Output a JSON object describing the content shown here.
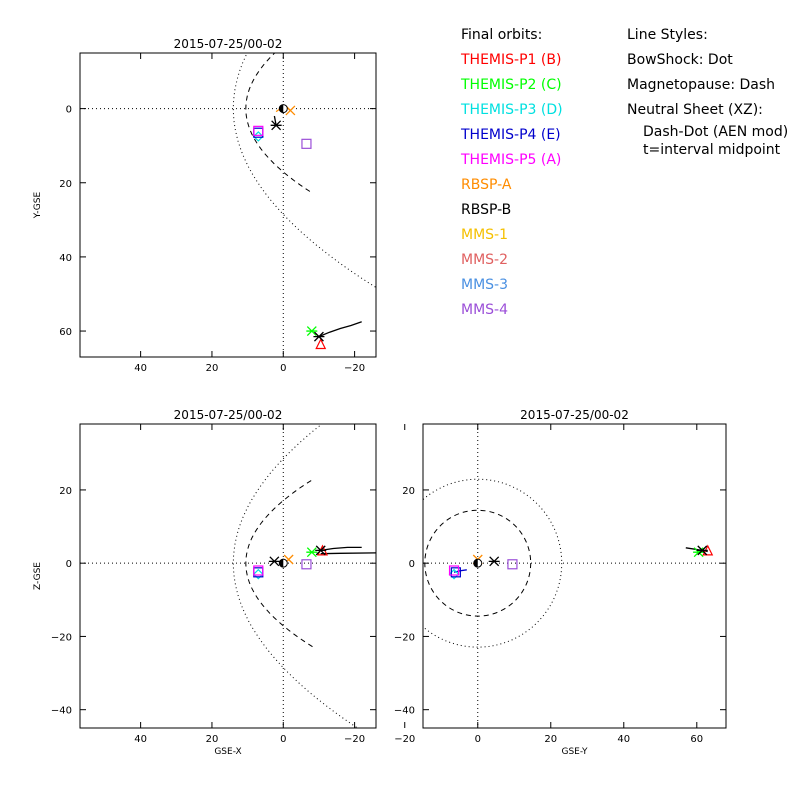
{
  "legend": {
    "orbits_header": "Final orbits:",
    "orbits": [
      {
        "label": "THEMIS-P1 (B)",
        "color": "#ff0000"
      },
      {
        "label": "THEMIS-P2 (C)",
        "color": "#00ff00"
      },
      {
        "label": "THEMIS-P3 (D)",
        "color": "#00e0e0"
      },
      {
        "label": "THEMIS-P4 (E)",
        "color": "#0000cc"
      },
      {
        "label": "THEMIS-P5 (A)",
        "color": "#ff00ff"
      },
      {
        "label": "RBSP-A",
        "color": "#ff8c00"
      },
      {
        "label": "RBSP-B",
        "color": "#000000"
      },
      {
        "label": "MMS-1",
        "color": "#f5c000"
      },
      {
        "label": "MMS-2",
        "color": "#e06060"
      },
      {
        "label": "MMS-3",
        "color": "#4a90e2"
      },
      {
        "label": "MMS-4",
        "color": "#9b4fd8"
      }
    ],
    "styles_header": "Line Styles:",
    "styles": [
      "BowShock: Dot",
      "Magnetopause: Dash",
      "Neutral Sheet (XZ):"
    ],
    "style_notes": [
      "Dash-Dot (AEN mod)",
      "t=interval midpoint"
    ]
  },
  "chart_data": [
    {
      "type": "scatter",
      "title": "2015-07-25/00-02",
      "xlabel": "",
      "ylabel": "Y-GSE",
      "xlim": [
        57,
        -26
      ],
      "ylim": [
        -15,
        67
      ],
      "x_reversed": true,
      "y_reversed": true,
      "xticks": [
        40,
        20,
        0,
        -20
      ],
      "xtick_labels": [
        "40",
        "20",
        "0",
        "−20"
      ],
      "yticks": [
        0,
        20,
        40,
        60
      ],
      "ytick_labels": [
        "0",
        "20",
        "40",
        "60"
      ],
      "zero_lines": true,
      "points": [
        {
          "x": -10.5,
          "y": 63.5,
          "marker": "triangle",
          "color": "#ff0000"
        },
        {
          "x": -8,
          "y": 60,
          "marker": "asterisk",
          "color": "#00ff00"
        },
        {
          "x": 7,
          "y": 7.5,
          "marker": "diamond",
          "color": "#00e0e0"
        },
        {
          "x": 7,
          "y": 6.5,
          "marker": "square",
          "color": "#0000cc"
        },
        {
          "x": 7,
          "y": 6,
          "marker": "square",
          "color": "#ff00ff"
        },
        {
          "x": -2,
          "y": 0.5,
          "marker": "x",
          "color": "#ff8c00"
        },
        {
          "x": 2,
          "y": 4.5,
          "marker": "asterisk",
          "color": "#000000"
        },
        {
          "x": -10,
          "y": 61.5,
          "marker": "asterisk",
          "color": "#000000"
        },
        {
          "x": -6.5,
          "y": 9.5,
          "marker": "square",
          "color": "#9b4fd8"
        },
        {
          "x": 0,
          "y": 0,
          "marker": "earth",
          "color": "#000000"
        }
      ],
      "tracks": [
        {
          "color": "#000000",
          "x": [
            -10,
            -13,
            -16,
            -19,
            -22
          ],
          "y": [
            61.5,
            60.3,
            59.3,
            58.5,
            57.5
          ]
        },
        {
          "color": "#ff8c00",
          "x": [
            -2,
            -1,
            0.5,
            2
          ],
          "y": [
            0.5,
            -0.3,
            -0.2,
            0.8
          ]
        },
        {
          "color": "#000000",
          "x": [
            2,
            2.5
          ],
          "y": [
            4.5,
            2
          ]
        }
      ],
      "boundaries": [
        {
          "kind": "bowshock",
          "style": "dotted",
          "x0": 14,
          "p": 29.1,
          "tmax": 70
        },
        {
          "kind": "magnetopause",
          "style": "dashed",
          "x0": 10.5,
          "p": 13.9,
          "tmax": 22.8
        }
      ]
    },
    {
      "type": "scatter",
      "title": "2015-07-25/00-02",
      "xlabel": "GSE-X",
      "ylabel": "Z-GSE",
      "xlim": [
        57,
        -26
      ],
      "ylim": [
        -45,
        38
      ],
      "x_reversed": true,
      "y_reversed": false,
      "xticks": [
        40,
        20,
        0,
        -20
      ],
      "xtick_labels": [
        "40",
        "20",
        "0",
        "−20"
      ],
      "yticks": [
        -40,
        -20,
        0,
        20
      ],
      "ytick_labels": [
        "−40",
        "−20",
        "0",
        "20"
      ],
      "zero_lines": true,
      "points": [
        {
          "x": -11,
          "y": 3.5,
          "marker": "triangle",
          "color": "#ff0000"
        },
        {
          "x": -8,
          "y": 3,
          "marker": "asterisk",
          "color": "#00ff00"
        },
        {
          "x": 7,
          "y": -3,
          "marker": "diamond",
          "color": "#00e0e0"
        },
        {
          "x": 7,
          "y": -2.5,
          "marker": "square",
          "color": "#0000cc"
        },
        {
          "x": 7,
          "y": -2,
          "marker": "square",
          "color": "#ff00ff"
        },
        {
          "x": -1.5,
          "y": 1,
          "marker": "x",
          "color": "#ff8c00"
        },
        {
          "x": 2.5,
          "y": 0.5,
          "marker": "asterisk",
          "color": "#000000"
        },
        {
          "x": -10.5,
          "y": 3.5,
          "marker": "asterisk",
          "color": "#000000"
        },
        {
          "x": -6.5,
          "y": -0.3,
          "marker": "square",
          "color": "#9b4fd8"
        },
        {
          "x": 0,
          "y": 0,
          "marker": "earth",
          "color": "#000000"
        }
      ],
      "tracks": [
        {
          "color": "#000000",
          "x": [
            -10.5,
            -14,
            -18,
            -22
          ],
          "y": [
            3.5,
            4,
            4.3,
            4.3
          ]
        },
        {
          "color": "#000000",
          "x": [
            -10.5,
            -16,
            -26
          ],
          "y": [
            2.6,
            2.7,
            2.8
          ]
        }
      ],
      "boundaries": [
        {
          "kind": "bowshock",
          "style": "dotted",
          "x0": 14,
          "p": 29.1,
          "tmax": 70
        },
        {
          "kind": "magnetopause",
          "style": "dashed",
          "x0": 10.5,
          "p": 13.9,
          "tmax": 22.8
        }
      ]
    },
    {
      "type": "scatter",
      "title": "2015-07-25/00-02",
      "xlabel": "GSE-Y",
      "ylabel": "",
      "xlim": [
        -15,
        68
      ],
      "ylim": [
        -45,
        38
      ],
      "x_reversed": false,
      "y_reversed": false,
      "xticks": [
        -20,
        0,
        20,
        40,
        60
      ],
      "xtick_labels": [
        "−20",
        "0",
        "20",
        "40",
        "60"
      ],
      "yticks": [
        -40,
        -20,
        0,
        20
      ],
      "ytick_labels": [
        "−40",
        "−20",
        "0",
        "20"
      ],
      "zero_lines": true,
      "points": [
        {
          "x": 63,
          "y": 3.5,
          "marker": "triangle",
          "color": "#ff0000"
        },
        {
          "x": 60.5,
          "y": 3,
          "marker": "asterisk",
          "color": "#00ff00"
        },
        {
          "x": -6.5,
          "y": -3,
          "marker": "diamond",
          "color": "#00e0e0"
        },
        {
          "x": -6,
          "y": -2.5,
          "marker": "square",
          "color": "#0000cc"
        },
        {
          "x": -6.5,
          "y": -2,
          "marker": "square",
          "color": "#ff00ff"
        },
        {
          "x": 0,
          "y": 1,
          "marker": "x",
          "color": "#ff8c00"
        },
        {
          "x": 4.5,
          "y": 0.5,
          "marker": "asterisk",
          "color": "#000000"
        },
        {
          "x": 61.5,
          "y": 3.5,
          "marker": "asterisk",
          "color": "#000000"
        },
        {
          "x": 9.5,
          "y": -0.3,
          "marker": "square",
          "color": "#9b4fd8"
        },
        {
          "x": 0,
          "y": 0,
          "marker": "earth",
          "color": "#000000"
        }
      ],
      "tracks": [
        {
          "color": "#000000",
          "x": [
            57,
            61.5,
            63
          ],
          "y": [
            4.2,
            3.5,
            3.2
          ]
        },
        {
          "color": "#0000cc",
          "x": [
            -6.5,
            -5,
            -3
          ],
          "y": [
            -2.5,
            -2.1,
            -1.8
          ]
        }
      ],
      "circles": [
        {
          "kind": "bowshock",
          "style": "dotted",
          "r": 23
        },
        {
          "kind": "magnetopause",
          "style": "dashed",
          "r": 14.5
        }
      ]
    }
  ]
}
